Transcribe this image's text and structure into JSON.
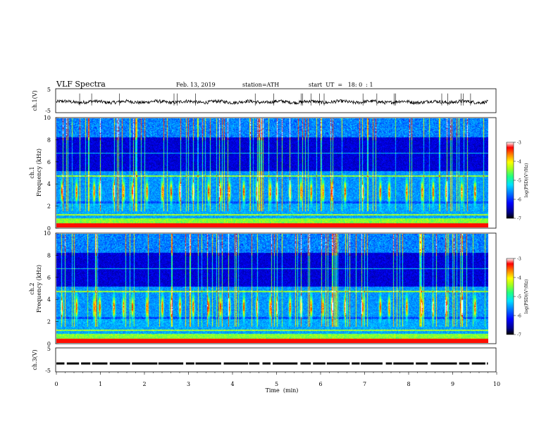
{
  "header": {
    "title": "VLF  Spectra",
    "date": "Feb. 13, 2019",
    "station": "station=ATH",
    "start": "start  UT  =   18: 0  : 1"
  },
  "colorbar": {
    "label": "log(PSD)(V²/Hz)",
    "ticks": [
      "-3",
      "-4",
      "-5",
      "-6",
      "-7"
    ],
    "stops": [
      "#000000",
      "#00008b",
      "#0000ff",
      "#0070ff",
      "#00e0ff",
      "#20ff80",
      "#a0ff20",
      "#ffff00",
      "#ff8000",
      "#ff0000",
      "#ffffff"
    ]
  },
  "chart_data": [
    {
      "type": "line",
      "name": "ch.1",
      "ylabel": "ch.1(V)",
      "ylim": [
        -5,
        5
      ],
      "yticks": [
        "5",
        "-5"
      ],
      "baseline_value": -0.5,
      "xlim": [
        0,
        10
      ]
    },
    {
      "type": "heatmap",
      "name": "ch.1",
      "ylabel_line1": "ch.1",
      "ylabel_line2": "Frequency (kHz)",
      "ylim": [
        0,
        10
      ],
      "yticks": [
        "0",
        "2",
        "4",
        "6",
        "8",
        "10"
      ],
      "xlim": [
        0,
        10
      ],
      "data_end_min": 9.8,
      "bursts_min": [
        0.12,
        0.45,
        0.85,
        0.98,
        1.3,
        1.52,
        1.72,
        2.05,
        2.4,
        2.6,
        2.8,
        3.1,
        3.45,
        3.72,
        3.92,
        4.25,
        4.55,
        4.85,
        5.0,
        5.3,
        5.55,
        5.78,
        6.05,
        6.25,
        6.55,
        6.95,
        7.35,
        7.55,
        7.95,
        8.3,
        8.55,
        8.85,
        9.2,
        9.5
      ]
    },
    {
      "type": "heatmap",
      "name": "ch.2",
      "ylabel_line1": "ch.2",
      "ylabel_line2": "Frequency (kHz)",
      "ylim": [
        0,
        10
      ],
      "yticks": [
        "0",
        "2",
        "4",
        "6",
        "8",
        "10"
      ],
      "xlim": [
        0,
        10
      ],
      "data_end_min": 9.8,
      "bursts_min": [
        0.12,
        0.45,
        0.85,
        0.98,
        1.3,
        1.52,
        1.72,
        2.05,
        2.4,
        2.6,
        2.8,
        3.1,
        3.45,
        3.72,
        3.92,
        4.25,
        4.55,
        4.85,
        5.0,
        5.3,
        5.55,
        5.78,
        6.05,
        6.25,
        6.55,
        6.95,
        7.35,
        7.55,
        7.95,
        8.3,
        8.55,
        8.85,
        9.2,
        9.5
      ]
    },
    {
      "type": "line",
      "name": "ch.3",
      "ylabel": "ch.3(V)",
      "ylim": [
        -5,
        5
      ],
      "yticks": [
        "5",
        "-5"
      ],
      "baseline_value": -1.5,
      "xlim": [
        0,
        10
      ],
      "xlabel": "Time  (min)",
      "xticks": [
        "0",
        "1",
        "2",
        "3",
        "4",
        "5",
        "6",
        "7",
        "8",
        "9",
        "10"
      ]
    }
  ]
}
